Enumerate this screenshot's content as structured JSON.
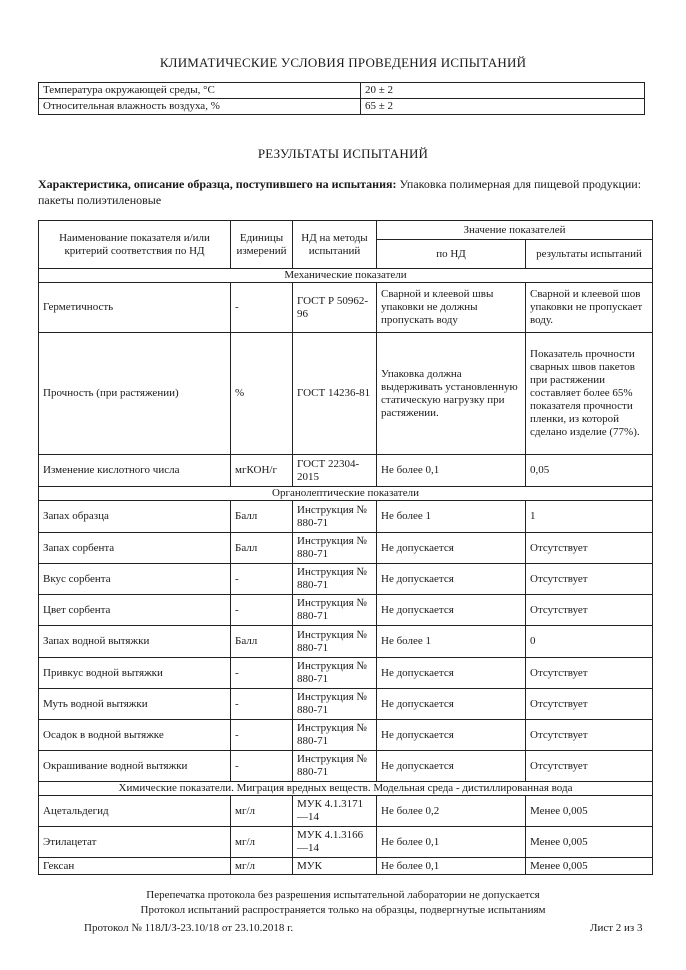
{
  "climate": {
    "title": "КЛИМАТИЧЕСКИЕ УСЛОВИЯ ПРОВЕДЕНИЯ ИСПЫТАНИЙ",
    "rows": [
      {
        "label": "Температура окружающей среды, °С",
        "value": "20 ± 2"
      },
      {
        "label": "Относительная влажность воздуха, %",
        "value": "65 ± 2"
      }
    ]
  },
  "results": {
    "title": "РЕЗУЛЬТАТЫ ИСПЫТАНИЙ",
    "description_label": "Характеристика, описание образца, поступившего на испытания:",
    "description_value": "Упаковка полимерная для пищевой продукции: пакеты полиэтиленовые",
    "headers": {
      "name": "Наименование показателя и/или критерий соответствия по НД",
      "units": "Единицы измерений",
      "method": "НД на методы испытаний",
      "values": "Значение показателей",
      "by_nd": "по НД",
      "results": "результаты испытаний"
    },
    "sections": [
      {
        "title": "Механические показатели",
        "rows": [
          {
            "name": "Герметичность",
            "units": "-",
            "method": "ГОСТ Р 50962-96",
            "by_nd": "Сварной и клеевой швы упаковки не должны пропускать воду",
            "result": "Сварной и клеевой шов упаковки не пропускает воду."
          },
          {
            "name": "Прочность (при растяжении)",
            "units": "%",
            "method": "ГОСТ 14236-81",
            "by_nd": "Упаковка должна выдерживать установленную статическую нагрузку при растяжении.",
            "result": "Показатель прочности сварных швов пакетов при растяжении составляет более 65% показателя прочности пленки, из которой сделано изделие (77%)."
          },
          {
            "name": "Изменение кислотного числа",
            "units": "мгКОН/г",
            "method": "ГОСТ 22304-2015",
            "by_nd": "Не более 0,1",
            "result": "0,05"
          }
        ]
      },
      {
        "title": "Органолептические показатели",
        "rows": [
          {
            "name": "Запах образца",
            "units": "Балл",
            "method": "Инструкция № 880-71",
            "by_nd": "Не более 1",
            "result": "1"
          },
          {
            "name": "Запах сорбента",
            "units": "Балл",
            "method": "Инструкция № 880-71",
            "by_nd": "Не допускается",
            "result": "Отсутствует"
          },
          {
            "name": "Вкус сорбента",
            "units": "-",
            "method": "Инструкция № 880-71",
            "by_nd": "Не допускается",
            "result": "Отсутствует"
          },
          {
            "name": "Цвет сорбента",
            "units": "-",
            "method": "Инструкция № 880-71",
            "by_nd": "Не допускается",
            "result": "Отсутствует"
          },
          {
            "name": "Запах водной вытяжки",
            "units": "Балл",
            "method": "Инструкция № 880-71",
            "by_nd": "Не более 1",
            "result": "0"
          },
          {
            "name": "Привкус водной вытяжки",
            "units": "-",
            "method": "Инструкция № 880-71",
            "by_nd": "Не допускается",
            "result": "Отсутствует"
          },
          {
            "name": "Муть водной вытяжки",
            "units": "-",
            "method": "Инструкция № 880-71",
            "by_nd": "Не допускается",
            "result": "Отсутствует"
          },
          {
            "name": "Осадок в водной вытяжке",
            "units": "-",
            "method": "Инструкция № 880-71",
            "by_nd": "Не допускается",
            "result": "Отсутствует"
          },
          {
            "name": "Окрашивание водной вытяжки",
            "units": "-",
            "method": "Инструкция № 880-71",
            "by_nd": "Не допускается",
            "result": "Отсутствует"
          }
        ]
      },
      {
        "title": "Химические показатели. Миграция вредных веществ. Модельная среда - дистиллированная вода",
        "rows": [
          {
            "name": "Ацетальдегид",
            "units": "мг/л",
            "method": "МУК 4.1.3171—14",
            "by_nd": "Не более 0,2",
            "result": "Менее 0,005"
          },
          {
            "name": "Этилацетат",
            "units": "мг/л",
            "method": "МУК 4.1.3166—14",
            "by_nd": "Не более  0,1",
            "result": "Менее 0,005"
          },
          {
            "name": "Гексан",
            "units": "мг/л",
            "method": "МУК",
            "by_nd": "Не более 0,1",
            "result": "Менее 0,005"
          }
        ]
      }
    ]
  },
  "footer": {
    "line1": "Перепечатка протокола без разрешения испытательной лаборатории не допускается",
    "line2": "Протокол испытаний распространяется только на образцы, подвергнутые испытаниям",
    "protocol": "Протокол № 118Л/З-23.10/18 от 23.10.2018 г.",
    "sheet": "Лист 2 из 3"
  }
}
